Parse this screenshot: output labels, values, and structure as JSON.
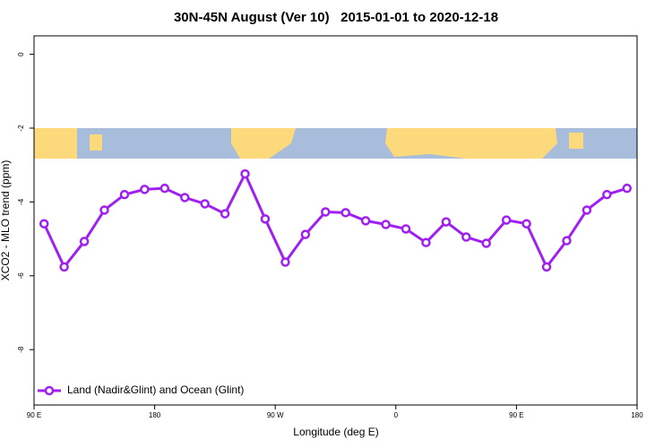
{
  "chart_data": {
    "type": "line",
    "title": "30N-45N August (Ver 10)   2015-01-01 to 2020-12-18",
    "x_label": "Longitude (deg E)",
    "y_label": "XCO2 - MLO trend (ppm)",
    "x": [
      97.5,
      112.5,
      127.5,
      142.5,
      157.5,
      172.5,
      187.5,
      202.5,
      217.5,
      232.5,
      247.5,
      262.5,
      277.5,
      292.5,
      307.5,
      322.5,
      337.5,
      352.5,
      367.5,
      382.5,
      397.5,
      412.5,
      427.5,
      442.5,
      457.5,
      472.5,
      487.5,
      502.5,
      517.5,
      532.5
    ],
    "series": [
      {
        "name": "Land (Nadir&Glint) and Ocean (Glint)",
        "color": "#a020f0",
        "values": [
          -4.59,
          -5.76,
          -5.07,
          -4.22,
          -3.8,
          -3.66,
          -3.63,
          -3.88,
          -4.05,
          -4.32,
          -3.24,
          -4.46,
          -5.63,
          -4.88,
          -4.27,
          -4.29,
          -4.51,
          -4.61,
          -4.73,
          -5.1,
          -4.54,
          -4.95,
          -5.12,
          -4.49,
          -4.59,
          -5.76,
          -5.05,
          -4.22,
          -3.8,
          -3.63
        ]
      }
    ],
    "xlim": [
      90,
      540
    ],
    "xticks": [
      {
        "value": 90,
        "label": "90 E"
      },
      180,
      {
        "value": 270,
        "label": "90 W"
      },
      {
        "value": 360,
        "label": "0"
      },
      {
        "value": 450,
        "label": "90 E"
      },
      {
        "value": 540,
        "label": "180"
      }
    ],
    "ylim": [
      -9.5,
      0.5
    ],
    "yticks": [
      0,
      -2,
      -4,
      -6,
      -8
    ],
    "legend": "bottom-left"
  }
}
